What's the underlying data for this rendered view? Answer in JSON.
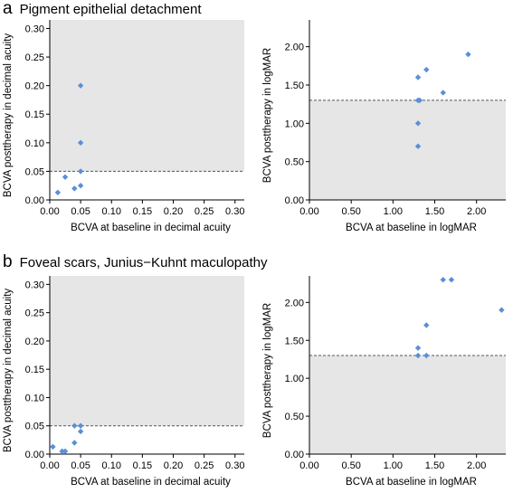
{
  "panels": [
    {
      "letter": "a",
      "title": "Pigment epithelial detachment"
    },
    {
      "letter": "b",
      "title": "Foveal scars, Junius−Kuhnt maculopathy"
    }
  ],
  "colors": {
    "point": "#5b8fd6",
    "shade": "#e6e6e6",
    "threshold": "#555555"
  },
  "chart_data": [
    {
      "type": "scatter",
      "panel": "a",
      "xlabel": "BCVA at baseline in decimal acuity",
      "ylabel": "BCVA posttherapy in decimal acuity",
      "xlim": [
        0,
        0.315
      ],
      "ylim": [
        0,
        0.315
      ],
      "xticks": [
        "0.00",
        "0.05",
        "0.10",
        "0.15",
        "0.20",
        "0.25",
        "0.30"
      ],
      "yticks": [
        "0.00",
        "0.05",
        "0.10",
        "0.15",
        "0.20",
        "0.25",
        "0.30"
      ],
      "threshold": 0.05,
      "shaded_region": "above",
      "points": [
        [
          0.013,
          0.013
        ],
        [
          0.025,
          0.04
        ],
        [
          0.04,
          0.02
        ],
        [
          0.05,
          0.025
        ],
        [
          0.05,
          0.05
        ],
        [
          0.05,
          0.1
        ],
        [
          0.05,
          0.2
        ]
      ]
    },
    {
      "type": "scatter",
      "panel": "a",
      "xlabel": "BCVA at baseline in logMAR",
      "ylabel": "BCVA posttherapy in logMAR",
      "xlim": [
        0,
        2.35
      ],
      "ylim": [
        0,
        2.35
      ],
      "xticks": [
        "0.00",
        "0.50",
        "1.00",
        "1.50",
        "2.00"
      ],
      "yticks": [
        "0.00",
        "0.50",
        "1.00",
        "1.50",
        "2.00"
      ],
      "threshold": 1.3,
      "shaded_region": "below",
      "points": [
        [
          1.3,
          0.7
        ],
        [
          1.3,
          1.0
        ],
        [
          1.3,
          1.3
        ],
        [
          1.32,
          1.3
        ],
        [
          1.3,
          1.6
        ],
        [
          1.4,
          1.7
        ],
        [
          1.6,
          1.4
        ],
        [
          1.9,
          1.9
        ]
      ]
    },
    {
      "type": "scatter",
      "panel": "b",
      "xlabel": "BCVA at baseline in decimal acuity",
      "ylabel": "BCVA posttherapy in decimal acuity",
      "xlim": [
        0,
        0.315
      ],
      "ylim": [
        0,
        0.315
      ],
      "xticks": [
        "0.00",
        "0.05",
        "0.10",
        "0.15",
        "0.20",
        "0.25",
        "0.30"
      ],
      "yticks": [
        "0.00",
        "0.05",
        "0.10",
        "0.15",
        "0.20",
        "0.25",
        "0.30"
      ],
      "threshold": 0.05,
      "shaded_region": "above",
      "points": [
        [
          0.005,
          0.013
        ],
        [
          0.02,
          0.005
        ],
        [
          0.025,
          0.005
        ],
        [
          0.04,
          0.02
        ],
        [
          0.04,
          0.05
        ],
        [
          0.05,
          0.04
        ],
        [
          0.05,
          0.05
        ]
      ]
    },
    {
      "type": "scatter",
      "panel": "b",
      "xlabel": "BCVA at baseline in logMAR",
      "ylabel": "BCVA posttherapy in logMAR",
      "xlim": [
        0,
        2.35
      ],
      "ylim": [
        0,
        2.35
      ],
      "xticks": [
        "0.00",
        "0.50",
        "1.00",
        "1.50",
        "2.00"
      ],
      "yticks": [
        "0.00",
        "0.50",
        "1.00",
        "1.50",
        "2.00"
      ],
      "threshold": 1.3,
      "shaded_region": "below",
      "points": [
        [
          1.3,
          1.3
        ],
        [
          1.3,
          1.4
        ],
        [
          1.4,
          1.3
        ],
        [
          1.4,
          1.7
        ],
        [
          1.6,
          2.3
        ],
        [
          1.7,
          2.3
        ],
        [
          2.3,
          1.9
        ]
      ]
    }
  ]
}
